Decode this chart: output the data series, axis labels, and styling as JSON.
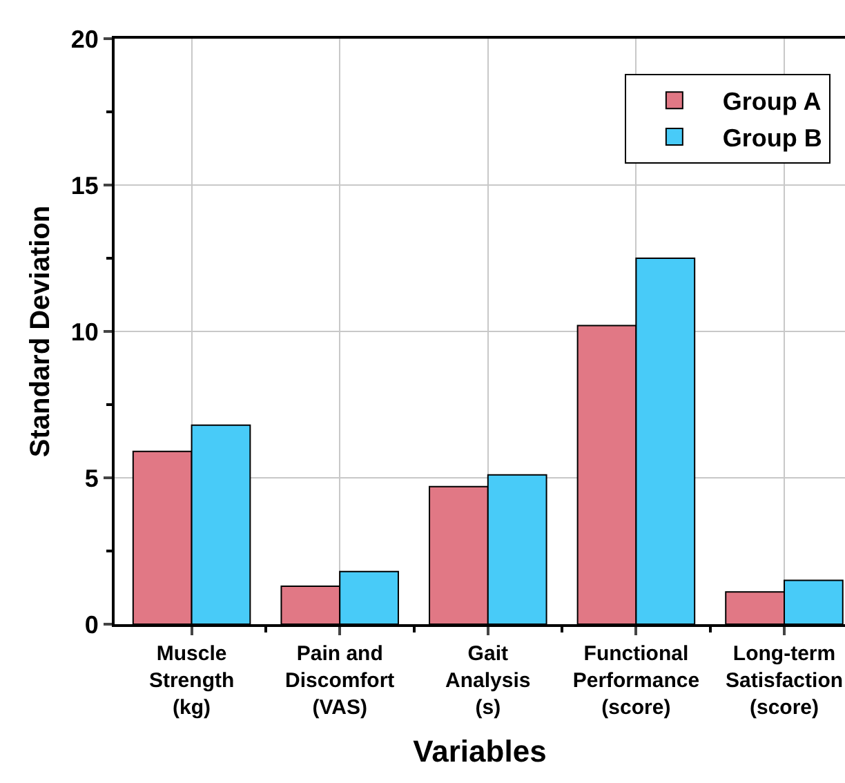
{
  "chart_data": {
    "type": "bar",
    "xlabel": "Variables",
    "ylabel": "Standard Deviation",
    "categories": [
      "Muscle\nStrength\n(kg)",
      "Pain and\nDiscomfort\n(VAS)",
      "Gait\nAnalysis\n(s)",
      "Functional\nPerformance\n(score)",
      "Long-term\nSatisfaction\n(score)"
    ],
    "series": [
      {
        "name": "Group A",
        "color": "#e17885",
        "values": [
          5.9,
          1.3,
          4.7,
          10.2,
          1.1
        ]
      },
      {
        "name": "Group B",
        "color": "#48cbf8",
        "values": [
          6.8,
          1.8,
          5.1,
          12.5,
          1.5
        ]
      }
    ],
    "ylim": [
      0,
      20
    ],
    "yticks": [
      0,
      5,
      10,
      15,
      20
    ],
    "grid": true,
    "legend": "top right"
  }
}
